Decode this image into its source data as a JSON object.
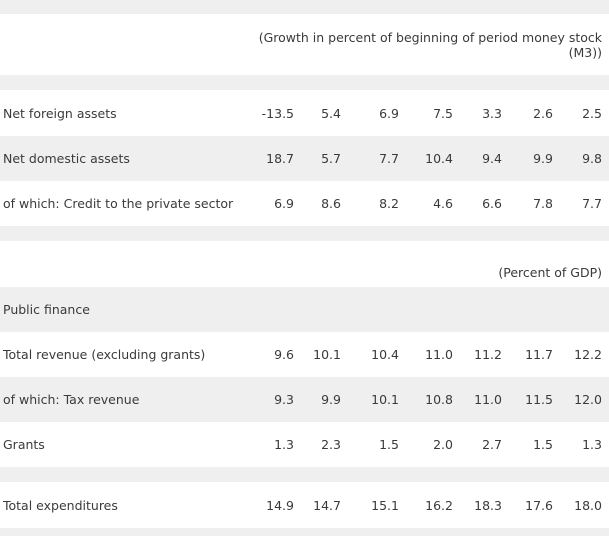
{
  "header": {
    "growth_unit_line1": "(Growth in percent of beginning of period money stock",
    "growth_unit_line2": "(M3))",
    "gdp_unit": "(Percent of GDP)"
  },
  "rows": [
    {
      "label": "Net foreign assets",
      "values": [
        "-13.5",
        "5.4",
        "6.9",
        "7.5",
        "3.3",
        "2.6",
        "2.5"
      ]
    },
    {
      "label": "Net domestic assets",
      "values": [
        "18.7",
        "5.7",
        "7.7",
        "10.4",
        "9.4",
        "9.9",
        "9.8"
      ]
    },
    {
      "label": "of which: Credit to the private sector",
      "values": [
        "6.9",
        "8.6",
        "8.2",
        "4.6",
        "6.6",
        "7.8",
        "7.7"
      ]
    },
    {
      "label": "Public finance",
      "values": []
    },
    {
      "label": "Total revenue (excluding grants)",
      "values": [
        "9.6",
        "10.1",
        "10.4",
        "11.0",
        "11.2",
        "11.7",
        "12.2"
      ]
    },
    {
      "label": "of which: Tax revenue",
      "values": [
        "9.3",
        "9.9",
        "10.1",
        "10.8",
        "11.0",
        "11.5",
        "12.0"
      ]
    },
    {
      "label": "Grants",
      "values": [
        "1.3",
        "2.3",
        "1.5",
        "2.0",
        "2.7",
        "1.5",
        "1.3"
      ]
    },
    {
      "label": "Total expenditures",
      "values": [
        "14.9",
        "14.7",
        "15.1",
        "16.2",
        "18.3",
        "17.6",
        "18.0"
      ]
    }
  ]
}
